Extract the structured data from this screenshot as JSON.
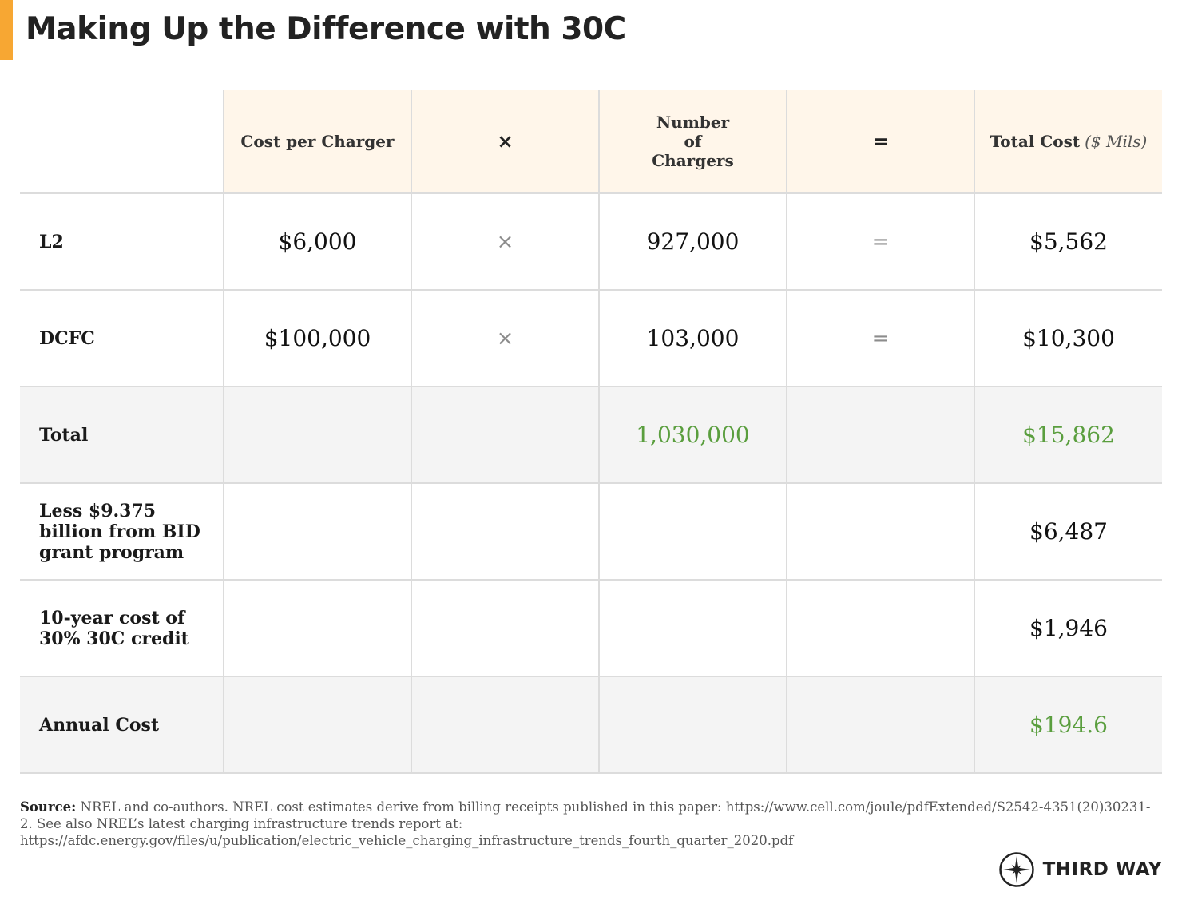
{
  "title": "Making Up the Difference with 30C",
  "colors": {
    "accent": "#f7a733",
    "header_bg": "#fff6ea",
    "shaded_row": "#f4f4f4",
    "highlight_green": "#5a9e3e"
  },
  "chart_data": {
    "type": "table",
    "title": "Making Up the Difference with 30C",
    "columns": [
      {
        "label": ""
      },
      {
        "label": "Cost per Charger"
      },
      {
        "label": "×"
      },
      {
        "label": "Number of Chargers"
      },
      {
        "label": "="
      },
      {
        "label": "Total Cost",
        "unit": "($ Mils)"
      }
    ],
    "rows": [
      {
        "label": "L2",
        "cost": "$6,000",
        "times": "×",
        "number": "927,000",
        "equals": "=",
        "total": "$5,562"
      },
      {
        "label": "DCFC",
        "cost": "$100,000",
        "times": "×",
        "number": "103,000",
        "equals": "=",
        "total": "$10,300"
      },
      {
        "label": "Total",
        "cost": "",
        "times": "",
        "number": "1,030,000",
        "equals": "",
        "total": "$15,862",
        "highlight": true
      },
      {
        "label": "Less $9.375 billion from BID grant program",
        "cost": "",
        "times": "",
        "number": "",
        "equals": "",
        "total": "$6,487"
      },
      {
        "label": "10-year cost of 30% 30C credit",
        "cost": "",
        "times": "",
        "number": "",
        "equals": "",
        "total": "$1,946"
      },
      {
        "label": "Annual Cost",
        "cost": "",
        "times": "",
        "number": "",
        "equals": "",
        "total": "$194.6",
        "highlight": true
      }
    ]
  },
  "source": {
    "label": "Source:",
    "text": "NREL and co-authors. NREL cost estimates derive from billing receipts published in this paper: https://www.cell.com/joule/pdfExtended/S2542-4351(20)30231-2. See also NREL’s latest charging infrastructure trends report at: https://afdc.energy.gov/files/u/publication/electric_vehicle_charging_infrastructure_trends_fourth_quarter_2020.pdf"
  },
  "logo": {
    "text": "THIRD WAY",
    "icon": "compass-star-icon"
  }
}
